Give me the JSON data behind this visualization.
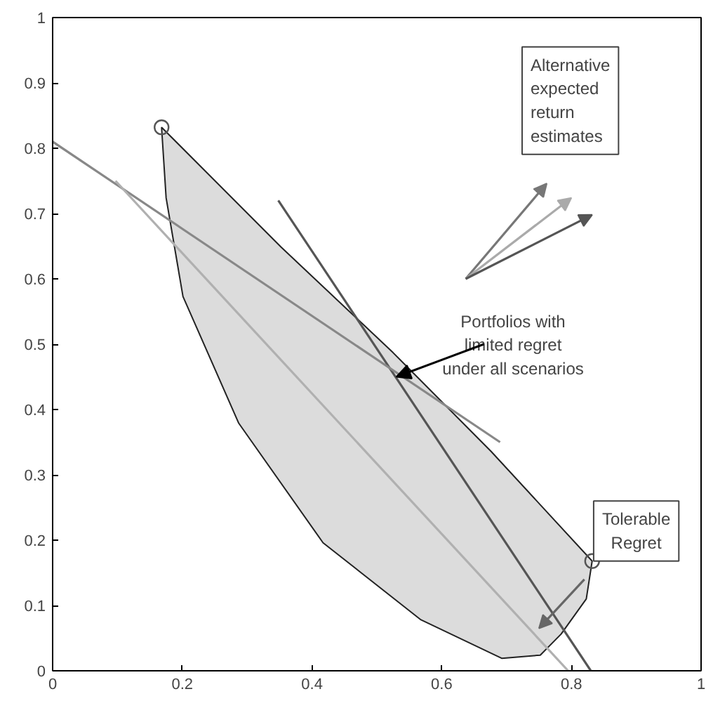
{
  "chart_data": {
    "type": "line",
    "xlim": [
      0,
      1
    ],
    "ylim": [
      0,
      1
    ],
    "xticks": [
      0,
      0.2,
      0.4,
      0.6,
      0.8,
      1
    ],
    "yticks": [
      0,
      0.1,
      0.2,
      0.3,
      0.4,
      0.5,
      0.6,
      0.7,
      0.8,
      0.9,
      1
    ],
    "grid": false,
    "series": [
      {
        "type": "area",
        "color": "#dcdcdc",
        "x": [
          0.168,
          0.352,
          0.525,
          0.676,
          0.832,
          0.823,
          0.784,
          0.752,
          0.693,
          0.568,
          0.417,
          0.287,
          0.201,
          0.175,
          0.168
        ],
        "values": [
          0.832,
          0.649,
          0.487,
          0.336,
          0.168,
          0.11,
          0.056,
          0.024,
          0.019,
          0.078,
          0.196,
          0.379,
          0.573,
          0.724,
          0.832
        ]
      },
      {
        "color": "#555555",
        "x": [
          0.348,
          0.83
        ],
        "values": [
          0.72,
          0.0
        ]
      },
      {
        "color": "#888888",
        "x": [
          0.0,
          0.69
        ],
        "values": [
          0.81,
          0.35
        ]
      },
      {
        "color": "#b0b0b0",
        "x": [
          0.097,
          0.795
        ],
        "values": [
          0.75,
          0.0
        ]
      },
      {
        "type": "scatter",
        "color": "#555555",
        "marker": "circle",
        "x": [
          0.168,
          0.832
        ],
        "values": [
          0.832,
          0.168
        ]
      }
    ],
    "annotations": [
      "Alternative\nexpected\nreturn\nestimates",
      {
        "text": "Portfolios with\nlimited regret\nunder all scenarios",
        "x": 0.53,
        "y": 0.45
      },
      "Tolerable\nRegret"
    ]
  }
}
